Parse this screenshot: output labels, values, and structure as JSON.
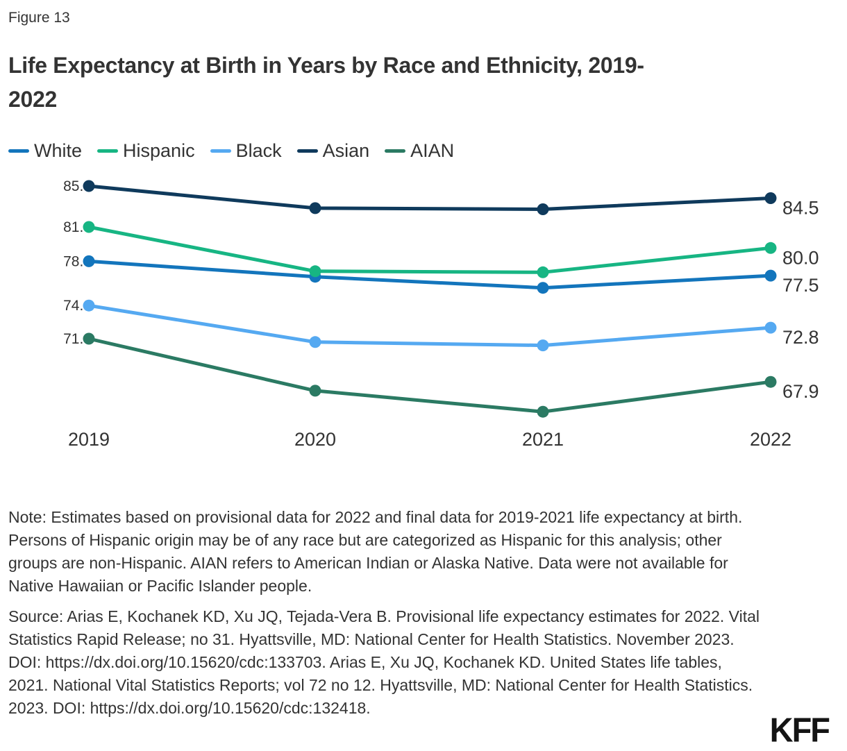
{
  "figure_label": "Figure 13",
  "title_line1": "Life Expectancy at Birth in Years by Race and Ethnicity, 2019-",
  "title_line2": "2022",
  "chart_data": {
    "type": "line",
    "title": "Life Expectancy at Birth in Years by Race and Ethnicity, 2019-2022",
    "x": [
      "2019",
      "2020",
      "2021",
      "2022"
    ],
    "series": [
      {
        "name": "White",
        "color": "#1375bc",
        "values": [
          78.8,
          77.4,
          76.4,
          77.5
        ]
      },
      {
        "name": "Hispanic",
        "color": "#17b583",
        "values": [
          81.9,
          77.9,
          77.8,
          80.0
        ]
      },
      {
        "name": "Black",
        "color": "#55a9f1",
        "values": [
          74.8,
          71.5,
          71.2,
          72.8
        ]
      },
      {
        "name": "Asian",
        "color": "#0f3a5c",
        "values": [
          85.6,
          83.6,
          83.5,
          84.5
        ]
      },
      {
        "name": "AIAN",
        "color": "#2b7a63",
        "values": [
          71.8,
          67.1,
          65.2,
          67.9
        ]
      }
    ],
    "start_value_labels": [
      "78.8",
      "81.9",
      "74.8",
      "85.6",
      "71.8"
    ],
    "end_value_labels": [
      "77.5",
      "80.0",
      "72.8",
      "84.5",
      "67.9"
    ],
    "ylim": [
      64,
      87
    ],
    "xlabel": "",
    "ylabel": "",
    "grid": false,
    "legend_position": "top-left",
    "label_format": "one-decimal"
  },
  "note": "Note: Estimates based on provisional data for 2022 and final data for 2019-2021 life expectancy at birth. Persons of Hispanic origin may be of any race but are categorized as Hispanic for this analysis; other groups are non-Hispanic. AIAN refers to American Indian or Alaska Native. Data were not available for Native Hawaiian or Pacific Islander people.",
  "source": "Source: Arias E, Kochanek KD, Xu JQ, Tejada-Vera B. Provisional life expectancy estimates for 2022. Vital Statistics Rapid Release; no 31. Hyattsville, MD: National Center for Health Statistics. November 2023. DOI: https://dx.doi.org/10.15620/cdc:133703. Arias E, Xu JQ, Kochanek KD. United States life tables, 2021. National Vital Statistics Reports; vol 72 no 12. Hyattsville, MD: National Center for Health Statistics. 2023. DOI: https://dx.doi.org/10.15620/cdc:132418.",
  "logo": "KFF",
  "colors": {
    "background": "#ffffff",
    "text": "#333333"
  }
}
